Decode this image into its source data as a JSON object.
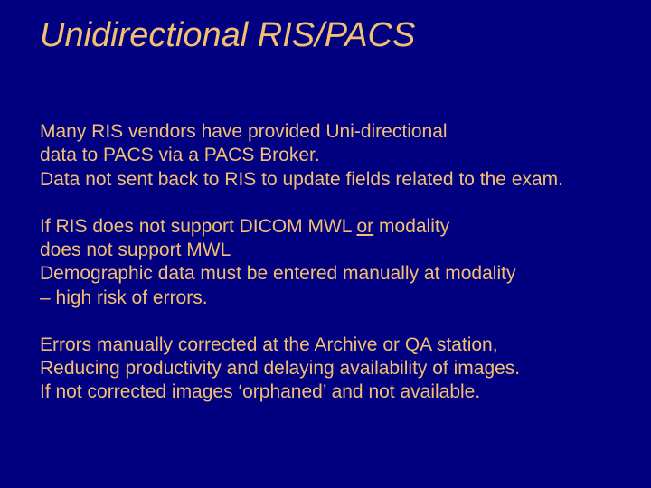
{
  "slide": {
    "background_color": "#000080",
    "text_color": "#f4c070",
    "title_color": "#f4c070",
    "title_fontsize": 38,
    "body_fontsize": 21,
    "font_family": "Arial",
    "title": "Unidirectional RIS/PACS",
    "para1_line1": "Many RIS vendors have provided Uni-directional",
    "para1_line2": "data to PACS via a PACS Broker.",
    "para1_line3": "Data not sent back to RIS to update fields related to the exam.",
    "para2_line1a": "If RIS does not support DICOM MWL ",
    "para2_line1_or": "or",
    "para2_line1b": " modality",
    "para2_line2": "does not support MWL",
    "para2_line3": "Demographic data must be entered manually at modality",
    "para2_line4": "– high risk of errors.",
    "para3_line1": "Errors manually corrected at the Archive or QA station,",
    "para3_line2": "Reducing productivity and delaying availability of images.",
    "para3_line3": "If not corrected images ‘orphaned’ and not available."
  }
}
